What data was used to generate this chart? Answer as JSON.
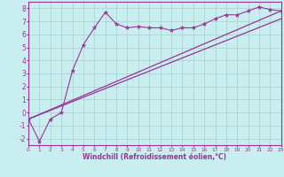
{
  "xlabel": "Windchill (Refroidissement éolien,°C)",
  "xlim": [
    0,
    23
  ],
  "ylim": [
    -2.5,
    8.5
  ],
  "yticks": [
    -2,
    -1,
    0,
    1,
    2,
    3,
    4,
    5,
    6,
    7,
    8
  ],
  "xticks": [
    0,
    1,
    2,
    3,
    4,
    5,
    6,
    7,
    8,
    9,
    10,
    11,
    12,
    13,
    14,
    15,
    16,
    17,
    18,
    19,
    20,
    21,
    22,
    23
  ],
  "bg_color": "#c8eef0",
  "line_color": "#993399",
  "grid_color": "#aacccc",
  "line1_x": [
    0,
    1,
    2,
    3,
    4,
    5,
    6,
    7,
    8,
    9,
    10,
    11,
    12,
    13,
    14,
    15,
    16,
    17,
    18,
    19,
    20,
    21,
    22,
    23
  ],
  "line1_y": [
    -0.5,
    -2.2,
    -0.5,
    0.0,
    3.2,
    5.2,
    6.5,
    7.7,
    6.8,
    6.5,
    6.6,
    6.5,
    6.5,
    6.3,
    6.5,
    6.5,
    6.8,
    7.2,
    7.5,
    7.5,
    7.8,
    8.1,
    7.9,
    7.8
  ],
  "line2_x": [
    0,
    23
  ],
  "line2_y": [
    -0.5,
    7.8
  ],
  "line3_x": [
    0,
    23
  ],
  "line3_y": [
    -0.5,
    7.2
  ],
  "font_color": "#993399",
  "xlabel_fontsize": 5.5,
  "tick_fontsize_x": 4.2,
  "tick_fontsize_y": 5.5
}
